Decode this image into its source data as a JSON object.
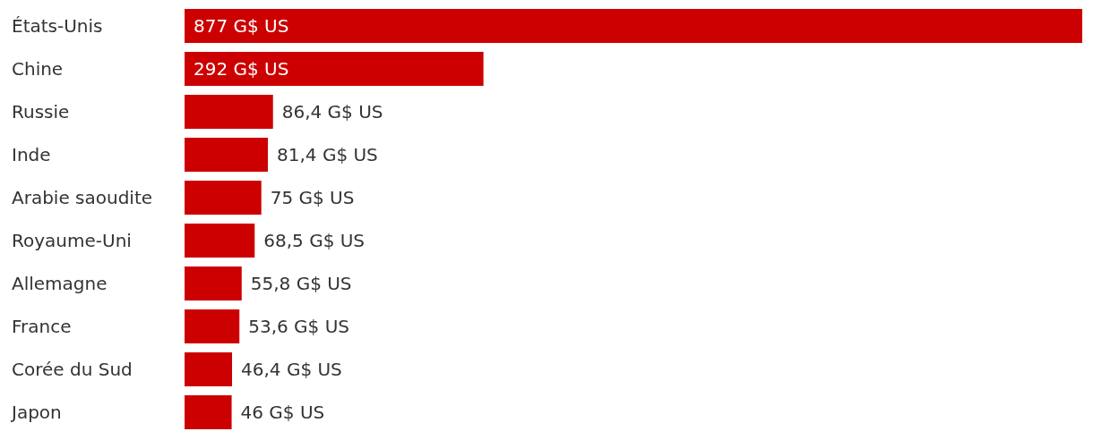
{
  "chart_data": {
    "type": "bar",
    "orientation": "horizontal",
    "categories": [
      "États-Unis",
      "Chine",
      "Russie",
      "Inde",
      "Arabie saoudite",
      "Royaume-Uni",
      "Allemagne",
      "France",
      "Corée du Sud",
      "Japon"
    ],
    "values": [
      877,
      292,
      86.4,
      81.4,
      75,
      68.5,
      55.8,
      53.6,
      46.4,
      46
    ],
    "value_labels": [
      "877 G$ US",
      "292 G$ US",
      "86,4 G$ US",
      "81,4 G$ US",
      "75 G$ US",
      "68,5 G$ US",
      "55,8 G$ US",
      "53,6 G$ US",
      "46,4 G$ US",
      "46 G$ US"
    ],
    "color": "#cc0000"
  }
}
